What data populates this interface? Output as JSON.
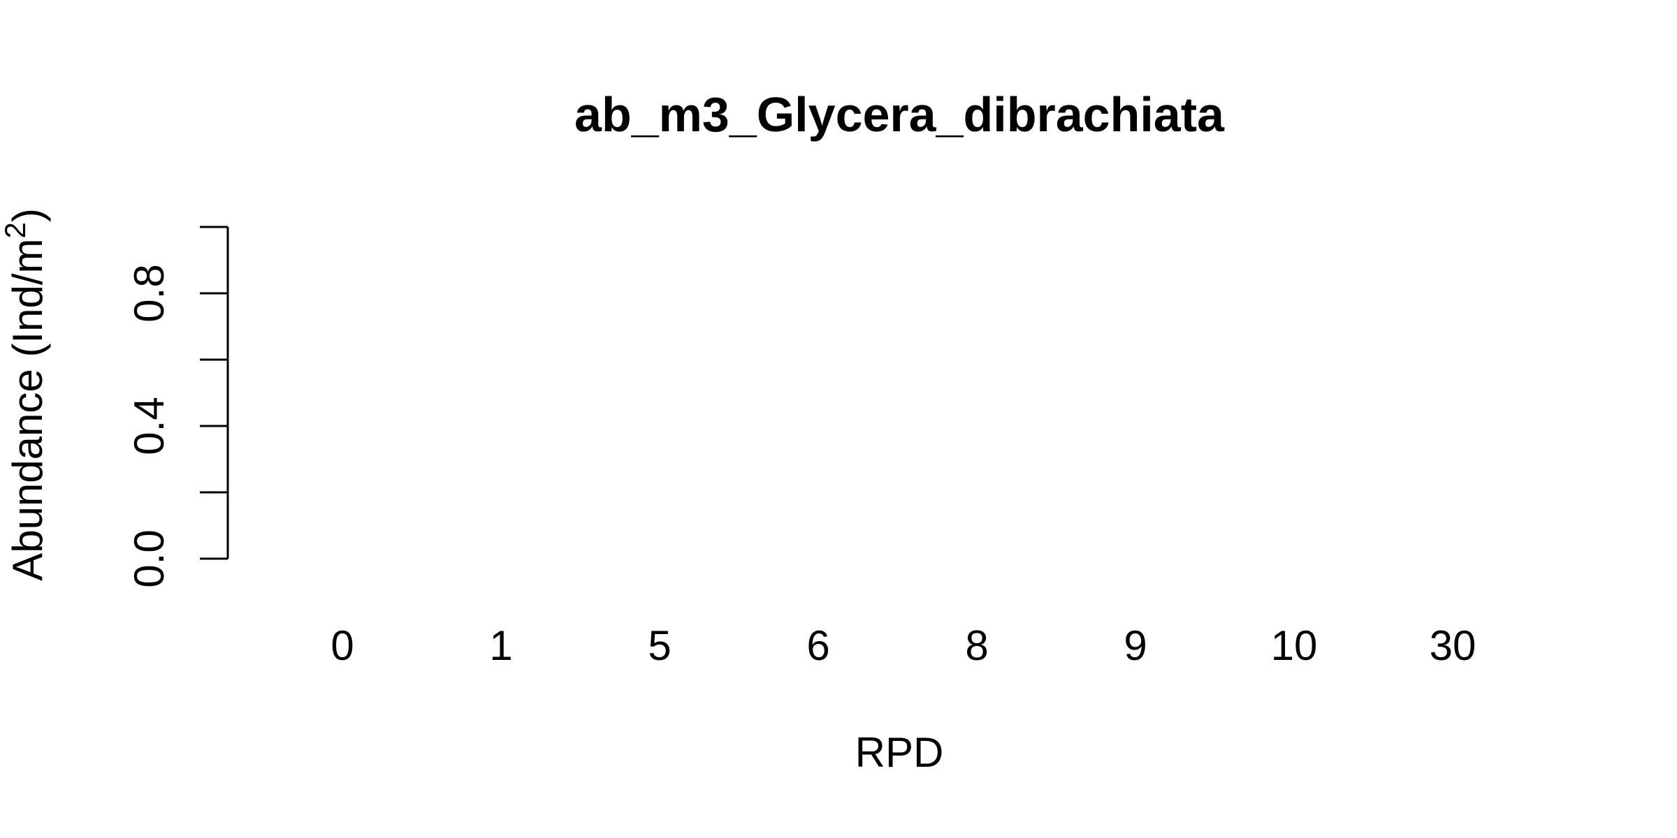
{
  "chart_data": {
    "type": "bar",
    "title": "ab_m3_Glycera_dibrachiata",
    "xlabel": "RPD",
    "ylabel": "Abundance (Ind/m",
    "ylabel_superscript": "2",
    "ylabel_suffix": ")",
    "categories": [
      "0",
      "1",
      "5",
      "6",
      "8",
      "9",
      "10",
      "30"
    ],
    "values": [
      0,
      0,
      0,
      0,
      0,
      0,
      0,
      0
    ],
    "ylim": [
      0,
      1
    ],
    "y_ticks": [
      0,
      0.2,
      0.4,
      0.6,
      0.8,
      1.0
    ],
    "y_tick_labels": [
      "0.0",
      "",
      "0.4",
      "",
      "0.8",
      ""
    ],
    "grid": false,
    "colors": {
      "axis": "#000000",
      "text": "#000000",
      "background": "#ffffff"
    }
  }
}
